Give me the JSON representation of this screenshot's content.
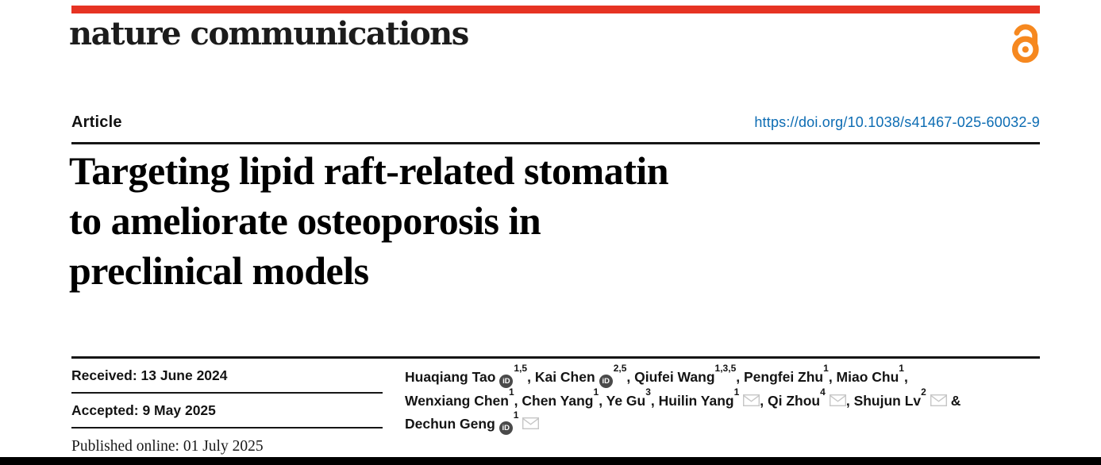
{
  "theme": {
    "brand_bar_color": "#e63323",
    "open_access_color": "#f6881f",
    "link_color": "#0c6cb3",
    "rule_color": "#161616",
    "bottom_bar_color": "#000000"
  },
  "masthead": {
    "journal_name": "nature communications",
    "open_access_icon": "open-access-lock"
  },
  "article_meta": {
    "category_label": "Article",
    "doi_link": "https://doi.org/10.1038/s41467-025-60032-9"
  },
  "title": {
    "full": "Targeting lipid raft-related stomatin to ameliorate osteoporosis in preclinical models",
    "lines": [
      "Targeting lipid raft-related stomatin",
      "to ameliorate osteoporosis in",
      "preclinical models"
    ]
  },
  "history": {
    "received": "Received: 13 June 2024",
    "accepted": "Accepted: 9 May 2025",
    "published_online": "Published online: 01 July 2025"
  },
  "authors": {
    "orcid_icon_label": "iD",
    "list": [
      {
        "name": "Huaqiang Tao",
        "orcid": true,
        "sup": "1,5",
        "sep": ", "
      },
      {
        "name": "Kai Chen",
        "orcid": true,
        "sup": "2,5",
        "sep": ", "
      },
      {
        "name": "Qiufei Wang",
        "orcid": false,
        "sup": "1,3,5",
        "sep": ", "
      },
      {
        "name": "Pengfei Zhu",
        "orcid": false,
        "sup": "1",
        "sep": ", "
      },
      {
        "name": "Miao Chu",
        "orcid": false,
        "sup": "1",
        "sep": ",",
        "break": true
      },
      {
        "name": "Wenxiang Chen",
        "orcid": false,
        "sup": "1",
        "sep": ", "
      },
      {
        "name": "Chen Yang",
        "orcid": false,
        "sup": "1",
        "sep": ", "
      },
      {
        "name": "Ye Gu",
        "orcid": false,
        "sup": "3",
        "sep": ", "
      },
      {
        "name": "Huilin Yang",
        "orcid": false,
        "sup": "1",
        "email": true,
        "sep": ", "
      },
      {
        "name": "Qi Zhou",
        "orcid": false,
        "sup": "4",
        "email": true,
        "sep": ", "
      },
      {
        "name": "Shujun Lv",
        "orcid": false,
        "sup": "2",
        "email": true,
        "sep": " &",
        "break": true
      },
      {
        "name": "Dechun Geng",
        "orcid": true,
        "sup": "1",
        "email": true,
        "sep": ""
      }
    ]
  }
}
